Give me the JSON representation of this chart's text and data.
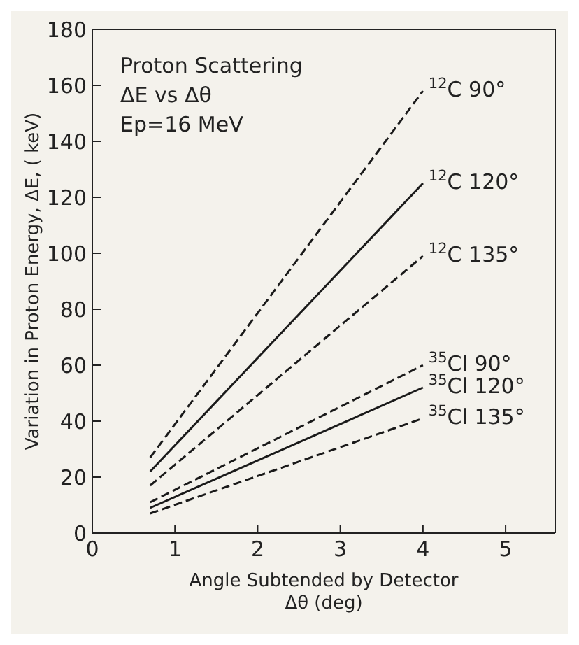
{
  "chart_data": {
    "type": "line",
    "xlabel": "Angle Subtended by Detector\nΔθ  (deg)",
    "ylabel": "Variation in Proton Energy, ΔE, ( keV)",
    "annotations": [
      "Proton Scattering",
      "ΔE vs Δθ",
      "Ep=16 MeV"
    ],
    "x": [
      0.7,
      4
    ],
    "series": [
      {
        "name": "$^{12}$C 90°",
        "color": "#1a1a1a",
        "line_style": "dashed",
        "values": [
          27,
          158
        ]
      },
      {
        "name": "$^{12}$C 120°",
        "color": "#1a1a1a",
        "line_style": "solid",
        "values": [
          22,
          125
        ]
      },
      {
        "name": "$^{12}$C 135°",
        "color": "#1a1a1a",
        "line_style": "dashed",
        "values": [
          17,
          99
        ]
      },
      {
        "name": "$^{35}$Cl 90°",
        "color": "#1a1a1a",
        "line_style": "dashed",
        "values": [
          11,
          60
        ]
      },
      {
        "name": "$^{35}$Cl 120°",
        "color": "#1a1a1a",
        "line_style": "solid",
        "values": [
          9,
          52
        ]
      },
      {
        "name": "$^{35}$Cl 135°",
        "color": "#1a1a1a",
        "line_style": "dashed",
        "values": [
          7,
          41
        ]
      }
    ],
    "xlim": [
      0,
      5.6
    ],
    "xticks": [
      0,
      1,
      2,
      3,
      4,
      5
    ],
    "ylim": [
      0,
      180
    ],
    "yticks": [
      0,
      20,
      40,
      60,
      80,
      100,
      120,
      140,
      160,
      180
    ],
    "marker": "none",
    "grid": false,
    "legend": false
  }
}
